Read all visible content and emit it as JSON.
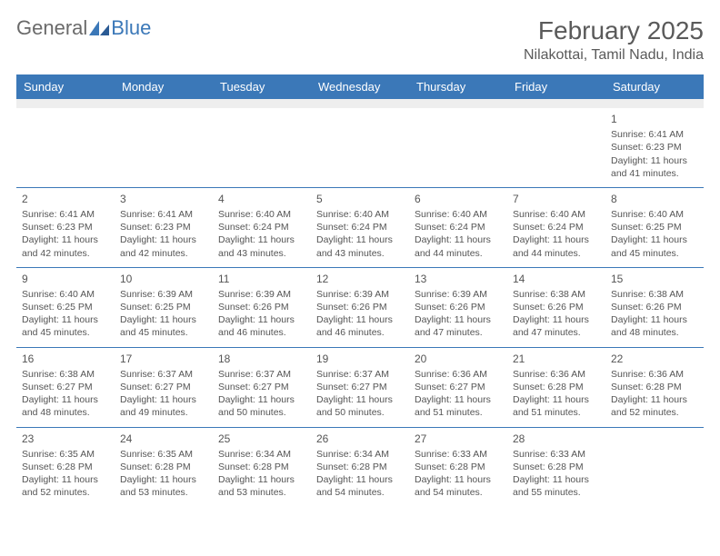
{
  "logo": {
    "text1": "General",
    "text2": "Blue"
  },
  "title": "February 2025",
  "location": "Nilakottai, Tamil Nadu, India",
  "colors": {
    "header_bg": "#3b78b8",
    "header_text": "#ffffff",
    "filler_bg": "#eeeeee",
    "divider": "#3b78b8",
    "body_text": "#555555",
    "logo_gray": "#6a6a6a",
    "logo_blue": "#3b78b8",
    "page_bg": "#ffffff"
  },
  "day_names": [
    "Sunday",
    "Monday",
    "Tuesday",
    "Wednesday",
    "Thursday",
    "Friday",
    "Saturday"
  ],
  "weeks": [
    [
      null,
      null,
      null,
      null,
      null,
      null,
      {
        "n": "1",
        "sr": "Sunrise: 6:41 AM",
        "ss": "Sunset: 6:23 PM",
        "dl": "Daylight: 11 hours and 41 minutes."
      }
    ],
    [
      {
        "n": "2",
        "sr": "Sunrise: 6:41 AM",
        "ss": "Sunset: 6:23 PM",
        "dl": "Daylight: 11 hours and 42 minutes."
      },
      {
        "n": "3",
        "sr": "Sunrise: 6:41 AM",
        "ss": "Sunset: 6:23 PM",
        "dl": "Daylight: 11 hours and 42 minutes."
      },
      {
        "n": "4",
        "sr": "Sunrise: 6:40 AM",
        "ss": "Sunset: 6:24 PM",
        "dl": "Daylight: 11 hours and 43 minutes."
      },
      {
        "n": "5",
        "sr": "Sunrise: 6:40 AM",
        "ss": "Sunset: 6:24 PM",
        "dl": "Daylight: 11 hours and 43 minutes."
      },
      {
        "n": "6",
        "sr": "Sunrise: 6:40 AM",
        "ss": "Sunset: 6:24 PM",
        "dl": "Daylight: 11 hours and 44 minutes."
      },
      {
        "n": "7",
        "sr": "Sunrise: 6:40 AM",
        "ss": "Sunset: 6:24 PM",
        "dl": "Daylight: 11 hours and 44 minutes."
      },
      {
        "n": "8",
        "sr": "Sunrise: 6:40 AM",
        "ss": "Sunset: 6:25 PM",
        "dl": "Daylight: 11 hours and 45 minutes."
      }
    ],
    [
      {
        "n": "9",
        "sr": "Sunrise: 6:40 AM",
        "ss": "Sunset: 6:25 PM",
        "dl": "Daylight: 11 hours and 45 minutes."
      },
      {
        "n": "10",
        "sr": "Sunrise: 6:39 AM",
        "ss": "Sunset: 6:25 PM",
        "dl": "Daylight: 11 hours and 45 minutes."
      },
      {
        "n": "11",
        "sr": "Sunrise: 6:39 AM",
        "ss": "Sunset: 6:26 PM",
        "dl": "Daylight: 11 hours and 46 minutes."
      },
      {
        "n": "12",
        "sr": "Sunrise: 6:39 AM",
        "ss": "Sunset: 6:26 PM",
        "dl": "Daylight: 11 hours and 46 minutes."
      },
      {
        "n": "13",
        "sr": "Sunrise: 6:39 AM",
        "ss": "Sunset: 6:26 PM",
        "dl": "Daylight: 11 hours and 47 minutes."
      },
      {
        "n": "14",
        "sr": "Sunrise: 6:38 AM",
        "ss": "Sunset: 6:26 PM",
        "dl": "Daylight: 11 hours and 47 minutes."
      },
      {
        "n": "15",
        "sr": "Sunrise: 6:38 AM",
        "ss": "Sunset: 6:26 PM",
        "dl": "Daylight: 11 hours and 48 minutes."
      }
    ],
    [
      {
        "n": "16",
        "sr": "Sunrise: 6:38 AM",
        "ss": "Sunset: 6:27 PM",
        "dl": "Daylight: 11 hours and 48 minutes."
      },
      {
        "n": "17",
        "sr": "Sunrise: 6:37 AM",
        "ss": "Sunset: 6:27 PM",
        "dl": "Daylight: 11 hours and 49 minutes."
      },
      {
        "n": "18",
        "sr": "Sunrise: 6:37 AM",
        "ss": "Sunset: 6:27 PM",
        "dl": "Daylight: 11 hours and 50 minutes."
      },
      {
        "n": "19",
        "sr": "Sunrise: 6:37 AM",
        "ss": "Sunset: 6:27 PM",
        "dl": "Daylight: 11 hours and 50 minutes."
      },
      {
        "n": "20",
        "sr": "Sunrise: 6:36 AM",
        "ss": "Sunset: 6:27 PM",
        "dl": "Daylight: 11 hours and 51 minutes."
      },
      {
        "n": "21",
        "sr": "Sunrise: 6:36 AM",
        "ss": "Sunset: 6:28 PM",
        "dl": "Daylight: 11 hours and 51 minutes."
      },
      {
        "n": "22",
        "sr": "Sunrise: 6:36 AM",
        "ss": "Sunset: 6:28 PM",
        "dl": "Daylight: 11 hours and 52 minutes."
      }
    ],
    [
      {
        "n": "23",
        "sr": "Sunrise: 6:35 AM",
        "ss": "Sunset: 6:28 PM",
        "dl": "Daylight: 11 hours and 52 minutes."
      },
      {
        "n": "24",
        "sr": "Sunrise: 6:35 AM",
        "ss": "Sunset: 6:28 PM",
        "dl": "Daylight: 11 hours and 53 minutes."
      },
      {
        "n": "25",
        "sr": "Sunrise: 6:34 AM",
        "ss": "Sunset: 6:28 PM",
        "dl": "Daylight: 11 hours and 53 minutes."
      },
      {
        "n": "26",
        "sr": "Sunrise: 6:34 AM",
        "ss": "Sunset: 6:28 PM",
        "dl": "Daylight: 11 hours and 54 minutes."
      },
      {
        "n": "27",
        "sr": "Sunrise: 6:33 AM",
        "ss": "Sunset: 6:28 PM",
        "dl": "Daylight: 11 hours and 54 minutes."
      },
      {
        "n": "28",
        "sr": "Sunrise: 6:33 AM",
        "ss": "Sunset: 6:28 PM",
        "dl": "Daylight: 11 hours and 55 minutes."
      },
      null
    ]
  ]
}
